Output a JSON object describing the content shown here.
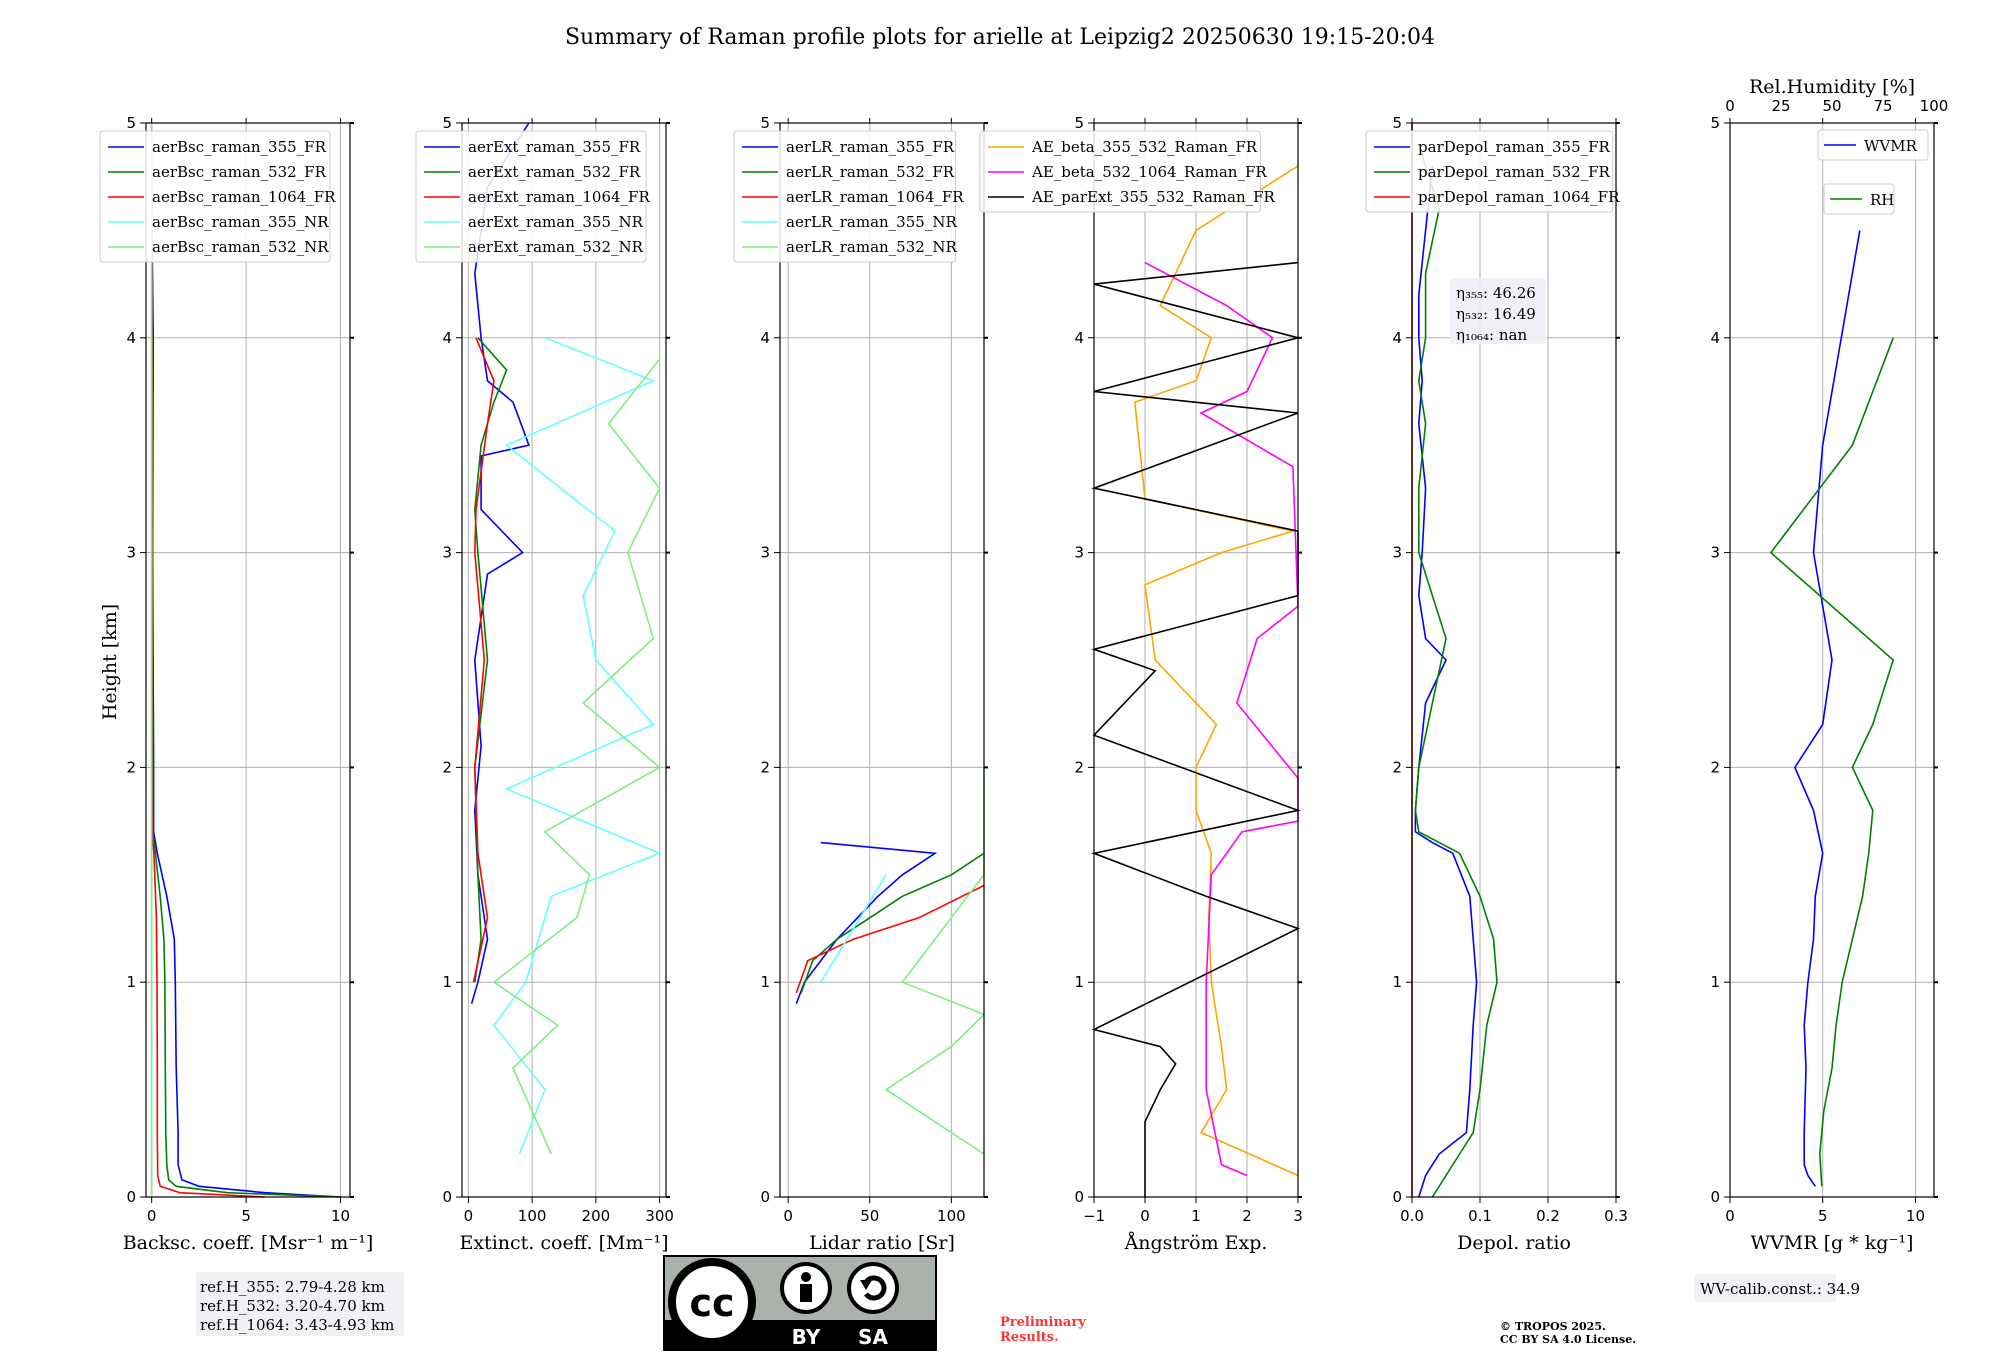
{
  "title": "Summary of Raman profile plots for arielle at Leipzig2 20250630 19:15-20:04",
  "ylabel": "Height [km]",
  "colors": {
    "blue": "#0000ff",
    "green": "#008000",
    "red": "#ff0000",
    "cyan": "#66ffff",
    "lightgreen": "#80ee80",
    "orange": "#ffa500",
    "magenta": "#ff00ff",
    "black": "#000000",
    "gray": "#b0b0b0"
  },
  "chart_data": [
    {
      "type": "line",
      "xlabel": "Backsc. coeff. [Msr⁻¹ m⁻¹]",
      "xlim": [
        -0.3,
        10.5
      ],
      "ylim": [
        0,
        5
      ],
      "xticks": [
        0,
        5,
        10
      ],
      "yticks": [
        0,
        1,
        2,
        3,
        4,
        5
      ],
      "legend_position": "top-left",
      "series": [
        {
          "name": "aerBsc_raman_355_FR",
          "color": "blue",
          "y": [
            0,
            0.02,
            0.05,
            0.08,
            0.15,
            0.3,
            0.6,
            1.0,
            1.2,
            1.4,
            1.6,
            1.7,
            2.0,
            3.0,
            4.0,
            4.5
          ],
          "x": [
            10,
            6,
            2.5,
            1.6,
            1.4,
            1.4,
            1.3,
            1.25,
            1.2,
            0.8,
            0.3,
            0.1,
            0.1,
            0.05,
            0.08,
            0.02
          ]
        },
        {
          "name": "aerBsc_raman_532_FR",
          "color": "green",
          "y": [
            0,
            0.02,
            0.05,
            0.08,
            0.15,
            0.3,
            0.6,
            1.0,
            1.2,
            1.4,
            1.6,
            1.7,
            2.0,
            3.0,
            4.0
          ],
          "x": [
            10,
            4,
            1.3,
            0.9,
            0.8,
            0.75,
            0.72,
            0.7,
            0.65,
            0.45,
            0.2,
            0.05,
            0.05,
            0.03,
            0.03
          ]
        },
        {
          "name": "aerBsc_raman_1064_FR",
          "color": "red",
          "y": [
            0,
            0.02,
            0.05,
            0.1,
            0.3,
            0.6,
            1.0,
            1.3,
            1.6,
            1.7,
            2.0,
            3.0,
            4.0,
            4.5,
            5.0
          ],
          "x": [
            6,
            1.5,
            0.45,
            0.32,
            0.3,
            0.3,
            0.28,
            0.25,
            0.12,
            0.03,
            0.02,
            0.02,
            0.02,
            0.02,
            0.0
          ]
        },
        {
          "name": "aerBsc_raman_355_NR",
          "color": "cyan",
          "y": [
            0,
            5
          ],
          "x": [
            0,
            0
          ]
        },
        {
          "name": "aerBsc_raman_532_NR",
          "color": "lightgreen",
          "y": [
            0,
            5
          ],
          "x": [
            0,
            0
          ]
        }
      ]
    },
    {
      "type": "line",
      "xlabel": "Extinct. coeff. [Mm⁻¹]",
      "xlim": [
        -10,
        310
      ],
      "ylim": [
        0,
        5
      ],
      "xticks": [
        0,
        100,
        200,
        300
      ],
      "yticks": [
        0,
        1,
        2,
        3,
        4,
        5
      ],
      "legend_position": "top-left",
      "series": [
        {
          "name": "aerExt_raman_355_FR",
          "color": "blue",
          "y": [
            0.9,
            1.0,
            1.2,
            1.5,
            1.8,
            2.1,
            2.5,
            2.9,
            3.0,
            3.2,
            3.45,
            3.5,
            3.7,
            3.8,
            4.0,
            4.3,
            4.7,
            5.0
          ],
          "x": [
            5,
            15,
            30,
            15,
            10,
            20,
            10,
            30,
            85,
            20,
            20,
            95,
            70,
            30,
            20,
            10,
            30,
            95
          ]
        },
        {
          "name": "aerExt_raman_532_FR",
          "color": "green",
          "y": [
            1.0,
            1.2,
            1.5,
            2.0,
            2.5,
            3.0,
            3.2,
            3.5,
            3.7,
            3.85,
            4.0
          ],
          "x": [
            10,
            20,
            15,
            10,
            30,
            15,
            10,
            20,
            40,
            60,
            15
          ]
        },
        {
          "name": "aerExt_raman_1064_FR",
          "color": "red",
          "y": [
            1.0,
            1.3,
            1.6,
            2.0,
            2.5,
            3.0,
            3.2,
            3.6,
            3.8,
            4.0
          ],
          "x": [
            8,
            30,
            15,
            10,
            25,
            10,
            12,
            30,
            40,
            12
          ]
        },
        {
          "name": "aerExt_raman_355_NR",
          "color": "cyan",
          "y": [
            0.2,
            0.5,
            0.8,
            1.0,
            1.4,
            1.6,
            1.9,
            2.2,
            2.5,
            2.8,
            3.1,
            3.5,
            3.8,
            4.0
          ],
          "x": [
            80,
            120,
            40,
            90,
            130,
            300,
            60,
            290,
            200,
            180,
            230,
            60,
            290,
            120
          ]
        },
        {
          "name": "aerExt_raman_532_NR",
          "color": "lightgreen",
          "y": [
            0.2,
            0.4,
            0.6,
            0.8,
            1.0,
            1.3,
            1.5,
            1.7,
            2.0,
            2.3,
            2.6,
            3.0,
            3.3,
            3.6,
            3.9
          ],
          "x": [
            130,
            100,
            70,
            140,
            40,
            170,
            190,
            120,
            300,
            180,
            290,
            250,
            300,
            220,
            300
          ]
        }
      ]
    },
    {
      "type": "line",
      "xlabel": "Lidar ratio [Sr]",
      "xlim": [
        -5,
        120
      ],
      "ylim": [
        0,
        5
      ],
      "xticks": [
        0,
        50,
        100
      ],
      "yticks": [
        0,
        1,
        2,
        3,
        4,
        5
      ],
      "legend_position": "top-left",
      "series": [
        {
          "name": "aerLR_raman_355_FR",
          "color": "blue",
          "y": [
            0.9,
            1.0,
            1.2,
            1.4,
            1.5,
            1.6,
            1.65
          ],
          "x": [
            5,
            10,
            30,
            55,
            70,
            90,
            20
          ]
        },
        {
          "name": "aerLR_raman_532_FR",
          "color": "green",
          "y": [
            0.95,
            1.1,
            1.2,
            1.3,
            1.4,
            1.5,
            1.6
          ],
          "x": [
            8,
            15,
            30,
            50,
            70,
            100,
            120
          ]
        },
        {
          "name": "aerLR_raman_1064_FR",
          "color": "red",
          "y": [
            0.95,
            1.1,
            1.2,
            1.3,
            1.45
          ],
          "x": [
            5,
            12,
            40,
            80,
            120
          ]
        },
        {
          "name": "aerLR_raman_355_NR",
          "color": "cyan",
          "y": [
            1.0,
            1.5
          ],
          "x": [
            20,
            60
          ]
        },
        {
          "name": "aerLR_raman_532_NR",
          "color": "lightgreen",
          "y": [
            0.2,
            0.5,
            0.7,
            0.85,
            1.0,
            1.5,
            2.0
          ],
          "x": [
            120,
            60,
            100,
            120,
            70,
            120,
            120
          ]
        }
      ]
    },
    {
      "type": "line",
      "xlabel": "Ångström Exp.",
      "xlim": [
        -1,
        3
      ],
      "ylim": [
        0,
        5
      ],
      "xticks": [
        -1,
        0,
        1,
        2,
        3
      ],
      "yticks": [
        0,
        1,
        2,
        3,
        4,
        5
      ],
      "legend_position": "top-left",
      "series": [
        {
          "name": "AE_beta_355_532_Raman_FR",
          "color": "orange",
          "y": [
            0.1,
            0.3,
            0.5,
            0.7,
            1.0,
            1.3,
            1.6,
            1.8,
            2.0,
            2.2,
            2.5,
            2.85,
            3.0,
            3.1,
            3.25,
            3.7,
            3.8,
            4.0,
            4.15,
            4.5,
            4.8
          ],
          "x": [
            3,
            1.1,
            1.6,
            1.5,
            1.3,
            1.25,
            1.3,
            1.0,
            1.0,
            1.4,
            0.2,
            0.0,
            1.5,
            2.9,
            0.0,
            -0.2,
            1.0,
            1.3,
            0.3,
            1.0,
            3.0
          ]
        },
        {
          "name": "AE_beta_532_1064_Raman_FR",
          "color": "magenta",
          "y": [
            0.1,
            0.15,
            0.5,
            1.0,
            1.5,
            1.7,
            1.75,
            1.95,
            2.3,
            2.6,
            2.75,
            3.4,
            3.65,
            3.75,
            4.0,
            4.15,
            4.35
          ],
          "x": [
            2.0,
            1.5,
            1.2,
            1.2,
            1.3,
            1.9,
            3.0,
            3.0,
            1.8,
            2.2,
            3.0,
            2.9,
            1.1,
            2.0,
            2.5,
            1.6,
            0.0
          ]
        },
        {
          "name": "AE_parExt_355_532_Raman_FR",
          "color": "black",
          "y": [
            0,
            0.35,
            0.5,
            0.62,
            0.7,
            0.78,
            1.25,
            1.4,
            1.6,
            1.8,
            2.15,
            2.45,
            2.55,
            2.8,
            3.1,
            3.3,
            3.65,
            3.75,
            4.0,
            4.25,
            4.35
          ],
          "x": [
            0,
            0,
            0.3,
            0.6,
            0.3,
            -1,
            3,
            1.2,
            -1,
            3,
            -1,
            0.2,
            -1,
            3,
            3,
            -1,
            3,
            -1,
            3,
            -1,
            3
          ]
        }
      ]
    },
    {
      "type": "line",
      "xlabel": "Depol. ratio",
      "xlim": [
        0.0,
        0.3
      ],
      "ylim": [
        0,
        5
      ],
      "xticks": [
        0.0,
        0.1,
        0.2,
        0.3
      ],
      "tick_labels": [
        "0.0",
        "0.1",
        "0.2",
        "0.3"
      ],
      "yticks": [
        0,
        1,
        2,
        3,
        4,
        5
      ],
      "legend_position": "top-left",
      "annotation_lines": [
        "η₃₅₅: 46.26",
        "η₅₃₂: 16.49",
        "η₁₀₆₄: nan"
      ],
      "series": [
        {
          "name": "parDepol_raman_355_FR",
          "color": "blue",
          "y": [
            0,
            0.1,
            0.2,
            0.25,
            0.3,
            0.5,
            0.8,
            1.0,
            1.2,
            1.4,
            1.6,
            1.65,
            1.7,
            1.8,
            2.0,
            2.3,
            2.5,
            2.6,
            2.8,
            3.0,
            3.3,
            3.6,
            3.8,
            4.0,
            4.2,
            4.5,
            4.8
          ],
          "x": [
            0.01,
            0.02,
            0.04,
            0.06,
            0.08,
            0.085,
            0.09,
            0.095,
            0.09,
            0.085,
            0.06,
            0.03,
            0.005,
            0.005,
            0.01,
            0.02,
            0.05,
            0.02,
            0.01,
            0.015,
            0.02,
            0.01,
            0.015,
            0.01,
            0.01,
            0.02,
            0.03
          ]
        },
        {
          "name": "parDepol_raman_532_FR",
          "color": "green",
          "y": [
            0,
            0.1,
            0.2,
            0.3,
            0.5,
            0.8,
            1.0,
            1.2,
            1.4,
            1.6,
            1.65,
            1.7,
            1.8,
            2.0,
            2.3,
            2.6,
            2.8,
            3.0,
            3.3,
            3.6,
            3.8,
            4.0,
            4.3,
            4.6,
            4.9
          ],
          "x": [
            0.03,
            0.05,
            0.07,
            0.09,
            0.1,
            0.11,
            0.125,
            0.12,
            0.1,
            0.07,
            0.04,
            0.01,
            0.005,
            0.01,
            0.03,
            0.05,
            0.03,
            0.01,
            0.01,
            0.02,
            0.01,
            0.02,
            0.02,
            0.04,
            0.01
          ]
        },
        {
          "name": "parDepol_raman_1064_FR",
          "color": "red",
          "y": [
            0,
            5
          ],
          "x": [
            0,
            0
          ]
        }
      ]
    },
    {
      "type": "line",
      "xlabel": "WVMR [g * kg⁻¹]",
      "x2label": "Rel.Humidity [%]",
      "xlim": [
        0,
        11
      ],
      "ylim": [
        0,
        5
      ],
      "xticks": [
        0,
        5,
        10
      ],
      "x2lim": [
        0,
        100
      ],
      "x2ticks": [
        0,
        25,
        50,
        75,
        100
      ],
      "yticks": [
        0,
        1,
        2,
        3,
        4,
        5
      ],
      "legend_position": "top-right",
      "series": [
        {
          "name": "WVMR",
          "color": "blue",
          "y": [
            0.05,
            0.1,
            0.15,
            0.3,
            0.6,
            0.8,
            1.0,
            1.2,
            1.4,
            1.6,
            1.8,
            2.0,
            2.2,
            2.5,
            3.0,
            3.5,
            4.0,
            4.5
          ],
          "x": [
            4.6,
            4.2,
            4.0,
            4.0,
            4.1,
            4.0,
            4.2,
            4.5,
            4.6,
            5.0,
            4.5,
            3.5,
            5.0,
            5.5,
            4.5,
            5.0,
            6.0,
            7.0
          ]
        },
        {
          "name": "RH",
          "color": "green",
          "y": [
            0.05,
            0.2,
            0.4,
            0.6,
            0.8,
            1.0,
            1.2,
            1.4,
            1.6,
            1.8,
            2.0,
            2.2,
            2.5,
            3.0,
            3.5,
            4.0
          ],
          "x": [
            45,
            44,
            46,
            50,
            52,
            55,
            60,
            65,
            68,
            70,
            60,
            70,
            80,
            20,
            60,
            80
          ]
        }
      ]
    }
  ],
  "notes": {
    "refh": [
      "ref.H_355: 2.79-4.28 km",
      "ref.H_532: 3.20-4.70 km",
      "ref.H_1064: 3.43-4.93 km"
    ],
    "license_by": "BY",
    "license_sa": "SA",
    "license_cc": "cc",
    "preliminary": [
      "Preliminary",
      "Results."
    ],
    "copyright": [
      "© TROPOS 2025.",
      "CC BY SA 4.0 License."
    ],
    "wv_calib": "WV-calib.const.: 34.9"
  }
}
